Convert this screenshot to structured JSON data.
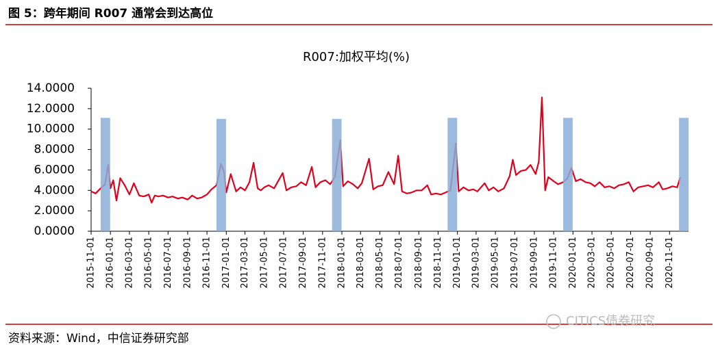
{
  "header": {
    "title": "图 5：跨年期间 R007 通常会到达高位"
  },
  "chart_data": {
    "type": "line",
    "title": "R007:加权平均(%)",
    "x": [
      "2015-11-01",
      "2015-11-15",
      "2015-12-01",
      "2015-12-15",
      "2015-12-25",
      "2016-01-01",
      "2016-01-10",
      "2016-01-20",
      "2016-02-01",
      "2016-02-15",
      "2016-03-01",
      "2016-03-15",
      "2016-04-01",
      "2016-04-15",
      "2016-05-01",
      "2016-05-10",
      "2016-05-20",
      "2016-06-01",
      "2016-06-15",
      "2016-07-01",
      "2016-07-15",
      "2016-08-01",
      "2016-08-15",
      "2016-09-01",
      "2016-09-15",
      "2016-10-01",
      "2016-10-15",
      "2016-11-01",
      "2016-11-15",
      "2016-12-01",
      "2016-12-15",
      "2016-12-25",
      "2017-01-01",
      "2017-01-15",
      "2017-02-01",
      "2017-02-15",
      "2017-03-01",
      "2017-03-15",
      "2017-03-28",
      "2017-04-10",
      "2017-04-20",
      "2017-05-01",
      "2017-05-15",
      "2017-06-01",
      "2017-06-28",
      "2017-07-10",
      "2017-07-25",
      "2017-08-10",
      "2017-08-25",
      "2017-09-10",
      "2017-09-28",
      "2017-10-10",
      "2017-10-25",
      "2017-11-10",
      "2017-11-25",
      "2017-12-10",
      "2017-12-27",
      "2018-01-05",
      "2018-01-20",
      "2018-02-05",
      "2018-02-20",
      "2018-03-05",
      "2018-03-28",
      "2018-04-10",
      "2018-04-25",
      "2018-05-10",
      "2018-05-28",
      "2018-06-15",
      "2018-06-28",
      "2018-07-10",
      "2018-07-25",
      "2018-08-10",
      "2018-08-25",
      "2018-09-10",
      "2018-09-28",
      "2018-10-10",
      "2018-10-25",
      "2018-11-10",
      "2018-11-25",
      "2018-12-10",
      "2018-12-27",
      "2019-01-05",
      "2019-01-20",
      "2019-02-05",
      "2019-02-20",
      "2019-03-05",
      "2019-03-28",
      "2019-04-10",
      "2019-04-25",
      "2019-05-10",
      "2019-05-28",
      "2019-06-15",
      "2019-06-25",
      "2019-07-05",
      "2019-07-20",
      "2019-08-05",
      "2019-08-20",
      "2019-09-05",
      "2019-09-15",
      "2019-09-25",
      "2019-10-05",
      "2019-10-15",
      "2019-11-01",
      "2019-11-15",
      "2019-12-01",
      "2019-12-15",
      "2019-12-27",
      "2020-01-10",
      "2020-01-25",
      "2020-02-10",
      "2020-02-25",
      "2020-03-10",
      "2020-03-25",
      "2020-04-10",
      "2020-04-25",
      "2020-05-10",
      "2020-05-25",
      "2020-06-10",
      "2020-06-25",
      "2020-07-10",
      "2020-07-25",
      "2020-08-10",
      "2020-08-25",
      "2020-09-10",
      "2020-09-28",
      "2020-10-10",
      "2020-10-25",
      "2020-11-10",
      "2020-11-25",
      "2020-12-05"
    ],
    "series": [
      {
        "name": "R007:加权平均(%)",
        "color": "#e0001b",
        "values": [
          3.9,
          3.7,
          4.2,
          4.6,
          6.5,
          4.2,
          5.0,
          3.0,
          5.2,
          4.5,
          3.6,
          4.7,
          3.5,
          3.4,
          3.6,
          2.8,
          3.5,
          3.4,
          3.5,
          3.3,
          3.4,
          3.2,
          3.3,
          3.1,
          3.5,
          3.2,
          3.3,
          3.6,
          4.1,
          4.5,
          6.6,
          5.8,
          3.8,
          5.6,
          3.9,
          4.3,
          4.0,
          4.8,
          6.7,
          4.2,
          4.0,
          4.3,
          4.5,
          4.2,
          5.7,
          4.0,
          4.3,
          4.4,
          4.8,
          4.5,
          6.3,
          4.3,
          4.8,
          5.0,
          4.6,
          5.3,
          8.9,
          4.4,
          4.9,
          4.6,
          4.2,
          4.7,
          7.1,
          4.1,
          4.4,
          4.5,
          5.8,
          4.6,
          7.4,
          3.9,
          3.7,
          3.8,
          4.0,
          4.0,
          4.5,
          3.6,
          3.7,
          3.6,
          3.8,
          4.0,
          8.6,
          3.9,
          4.3,
          4.0,
          4.1,
          3.9,
          4.7,
          4.0,
          4.3,
          3.9,
          4.2,
          5.4,
          7.0,
          5.5,
          5.9,
          6.0,
          6.5,
          5.6,
          6.8,
          13.1,
          4.0,
          5.3,
          4.9,
          4.6,
          4.8,
          5.2,
          6.2,
          4.9,
          5.1,
          4.8,
          4.7,
          4.4,
          4.8,
          4.3,
          4.4,
          4.2,
          4.5,
          4.6,
          4.8,
          3.9,
          4.3,
          4.4,
          4.5,
          4.3,
          4.8,
          4.1,
          4.2,
          4.4,
          4.3,
          5.3
        ]
      }
    ],
    "highlights": {
      "color": "#8aaed8",
      "start": [
        "2015-12-01",
        "2016-12-01",
        "2017-12-01",
        "2018-12-01",
        "2019-12-01",
        "2020-12-01"
      ],
      "end": [
        "2015-12-31",
        "2016-12-31",
        "2017-12-31",
        "2018-12-31",
        "2019-12-31",
        "2020-12-31"
      ],
      "values": [
        11.1,
        11.0,
        11.0,
        11.1,
        11.1,
        11.1
      ]
    },
    "xlim": [
      "2015-11-01",
      "2020-12-31"
    ],
    "xticks": [
      "2015-11-01",
      "2016-01-01",
      "2016-03-01",
      "2016-05-01",
      "2016-07-01",
      "2016-09-01",
      "2016-11-01",
      "2017-01-01",
      "2017-03-01",
      "2017-05-01",
      "2017-07-01",
      "2017-09-01",
      "2017-11-01",
      "2018-01-01",
      "2018-03-01",
      "2018-05-01",
      "2018-07-01",
      "2018-09-01",
      "2018-11-01",
      "2019-01-01",
      "2019-03-01",
      "2019-05-01",
      "2019-07-01",
      "2019-09-01",
      "2019-11-01",
      "2020-01-01",
      "2020-03-01",
      "2020-05-01",
      "2020-07-01",
      "2020-09-01",
      "2020-11-01"
    ],
    "ylim": [
      0,
      14
    ],
    "yticks": [
      {
        "value": 0,
        "label": "0.0000"
      },
      {
        "value": 2,
        "label": "2.0000"
      },
      {
        "value": 4,
        "label": "4.0000"
      },
      {
        "value": 6,
        "label": "6.0000"
      },
      {
        "value": 8,
        "label": "8.0000"
      },
      {
        "value": 10,
        "label": "10.0000"
      },
      {
        "value": 12,
        "label": "12.0000"
      },
      {
        "value": 14,
        "label": "14.0000"
      }
    ],
    "grid": false
  },
  "footer": {
    "source": "资料来源：Wind，中信证券研究部",
    "watermark": "CITICS债券研究"
  }
}
